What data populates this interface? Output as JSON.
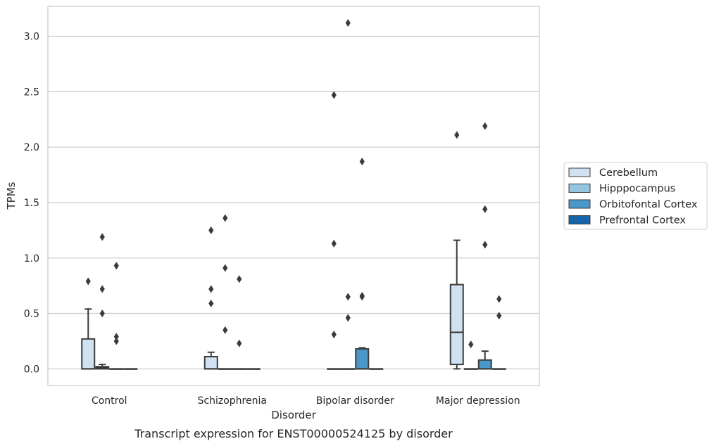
{
  "chart_data": {
    "type": "box",
    "caption": "Transcript expression for ENST00000524125 by disorder",
    "xlabel": "Disorder",
    "ylabel": "TPMs",
    "ylim": [
      -0.15,
      3.27
    ],
    "yticks": [
      "0.0",
      "0.5",
      "1.0",
      "1.5",
      "2.0",
      "2.5",
      "3.0"
    ],
    "grid": "horizontal",
    "legend_position": "right",
    "categories": [
      "Control",
      "Schizophrenia",
      "Bipolar disorder",
      "Major depression"
    ],
    "series": [
      {
        "name": "Cerebellum",
        "color": "#d0e1f2",
        "boxes": [
          {
            "min": 0,
            "q1": 0,
            "median": 0,
            "q3": 0.27,
            "max": 0.54,
            "outliers": [
              0.79
            ]
          },
          {
            "min": 0,
            "q1": 0,
            "median": 0,
            "q3": 0.11,
            "max": 0.15,
            "outliers": [
              0.59,
              0.72,
              1.25
            ]
          },
          {
            "min": 0,
            "q1": 0,
            "median": 0,
            "q3": 0,
            "max": 0,
            "outliers": [
              0.31,
              1.13,
              2.47
            ]
          },
          {
            "min": 0,
            "q1": 0.04,
            "median": 0.33,
            "q3": 0.76,
            "max": 1.16,
            "outliers": [
              2.11
            ]
          }
        ]
      },
      {
        "name": "Hipppocampus",
        "color": "#94c4df",
        "boxes": [
          {
            "min": 0,
            "q1": 0,
            "median": 0.01,
            "q3": 0.02,
            "max": 0.04,
            "outliers": [
              0.5,
              0.72,
              1.19
            ]
          },
          {
            "min": 0,
            "q1": 0,
            "median": 0,
            "q3": 0,
            "max": 0,
            "outliers": [
              0.35,
              0.91,
              1.36
            ]
          },
          {
            "min": 0,
            "q1": 0,
            "median": 0,
            "q3": 0,
            "max": 0,
            "outliers": [
              0.46,
              0.65,
              3.12
            ]
          },
          {
            "min": 0,
            "q1": 0,
            "median": 0,
            "q3": 0,
            "max": 0,
            "outliers": [
              0.22
            ]
          }
        ]
      },
      {
        "name": "Orbitofontal Cortex",
        "color": "#4a98c9",
        "boxes": [
          {
            "min": 0,
            "q1": 0,
            "median": 0,
            "q3": 0,
            "max": 0,
            "outliers": [
              0.25,
              0.29,
              0.93
            ]
          },
          {
            "min": 0,
            "q1": 0,
            "median": 0,
            "q3": 0,
            "max": 0,
            "outliers": [
              0.23,
              0.81
            ]
          },
          {
            "min": 0,
            "q1": 0,
            "median": 0,
            "q3": 0.18,
            "max": 0.19,
            "outliers": [
              0.65,
              0.66,
              1.87
            ]
          },
          {
            "min": 0,
            "q1": 0,
            "median": 0,
            "q3": 0.08,
            "max": 0.16,
            "outliers": [
              1.12,
              1.44,
              2.19
            ]
          }
        ]
      },
      {
        "name": "Prefrontal Cortex",
        "color": "#1764ab",
        "boxes": [
          {
            "min": 0,
            "q1": 0,
            "median": 0,
            "q3": 0,
            "max": 0,
            "outliers": []
          },
          {
            "min": 0,
            "q1": 0,
            "median": 0,
            "q3": 0,
            "max": 0,
            "outliers": []
          },
          {
            "min": 0,
            "q1": 0,
            "median": 0,
            "q3": 0,
            "max": 0,
            "outliers": []
          },
          {
            "min": 0,
            "q1": 0,
            "median": 0,
            "q3": 0,
            "max": 0,
            "outliers": [
              0.48,
              0.63
            ]
          }
        ]
      }
    ]
  }
}
